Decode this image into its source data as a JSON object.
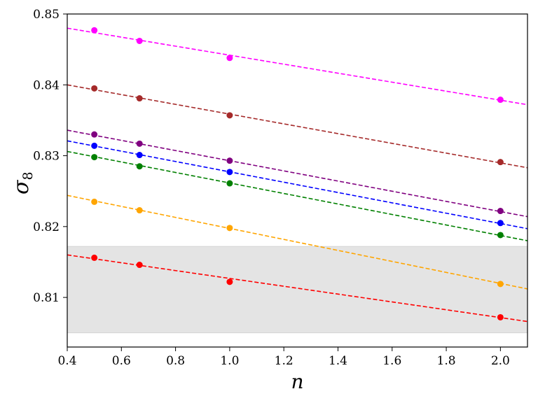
{
  "chart_data": {
    "type": "scatter",
    "xlabel": "n",
    "ylabel_main": "σ",
    "ylabel_sub": "8",
    "xlim": [
      0.4,
      2.1
    ],
    "ylim": [
      0.803,
      0.85
    ],
    "xticks": [
      0.4,
      0.6,
      0.8,
      1.0,
      1.2,
      1.4,
      1.6,
      1.8,
      2.0
    ],
    "xtick_labels": [
      "0.4",
      "0.6",
      "0.8",
      "1.0",
      "1.2",
      "1.4",
      "1.6",
      "1.8",
      "2.0"
    ],
    "yticks": [
      0.81,
      0.82,
      0.83,
      0.84,
      0.85
    ],
    "ytick_labels": [
      "0.81",
      "0.82",
      "0.83",
      "0.84",
      "0.85"
    ],
    "grid": false,
    "band": {
      "y0": 0.805,
      "y1": 0.8172,
      "color": "#e4e4e4"
    },
    "series": [
      {
        "color": "#ff00ff",
        "x": [
          0.5,
          0.667,
          1.0,
          2.0
        ],
        "y": [
          0.8477,
          0.8462,
          0.8438,
          0.8379
        ],
        "fit": [
          0.848,
          0.8372
        ]
      },
      {
        "color": "#a52a2a",
        "x": [
          0.5,
          0.667,
          1.0,
          2.0
        ],
        "y": [
          0.8395,
          0.8381,
          0.8357,
          0.8291
        ],
        "fit": [
          0.84,
          0.8283
        ]
      },
      {
        "color": "#800080",
        "x": [
          0.5,
          0.667,
          1.0,
          2.0
        ],
        "y": [
          0.833,
          0.8317,
          0.8293,
          0.8222
        ],
        "fit": [
          0.8336,
          0.8214
        ]
      },
      {
        "color": "#0000ff",
        "x": [
          0.5,
          0.667,
          1.0,
          2.0
        ],
        "y": [
          0.8314,
          0.8301,
          0.8277,
          0.8205
        ],
        "fit": [
          0.8321,
          0.8197
        ]
      },
      {
        "color": "#008000",
        "x": [
          0.5,
          0.667,
          1.0,
          2.0
        ],
        "y": [
          0.8298,
          0.8285,
          0.8261,
          0.8188
        ],
        "fit": [
          0.8306,
          0.818
        ]
      },
      {
        "color": "#ffa500",
        "x": [
          0.5,
          0.667,
          1.0,
          2.0
        ],
        "y": [
          0.8235,
          0.8223,
          0.8198,
          0.8119
        ],
        "fit": [
          0.8244,
          0.8112
        ]
      },
      {
        "color": "#ff0000",
        "x": [
          0.5,
          0.667,
          1.0,
          2.0
        ],
        "y": [
          0.8156,
          0.8146,
          0.8122,
          0.8072
        ],
        "fit": [
          0.816,
          0.8066
        ]
      }
    ]
  }
}
